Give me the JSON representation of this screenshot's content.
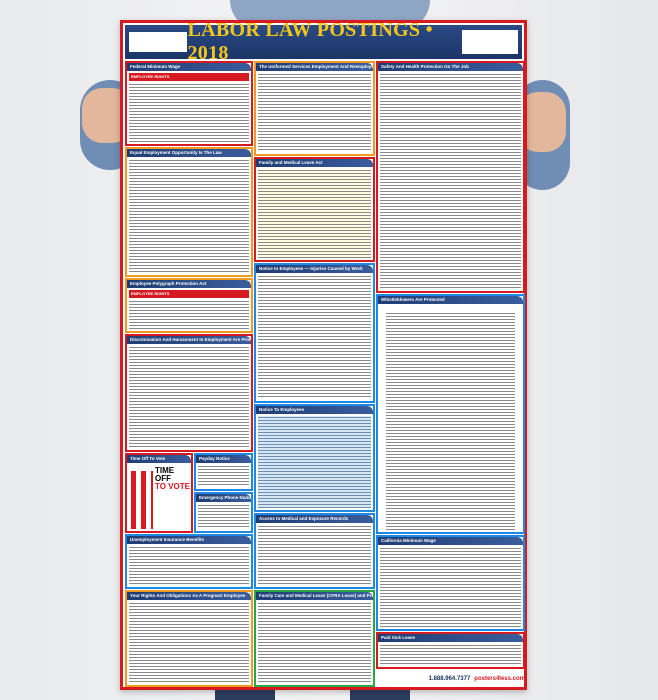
{
  "poster": {
    "title": "LABOR LAW POSTINGS • 2018",
    "footer_phone": "1.888.964.7377",
    "footer_brand": "posters4less.com",
    "colors": {
      "banner": "#1f3d73",
      "title": "#f5c518",
      "border": "#d71920"
    },
    "panels": {
      "fed_min_wage": "Federal Minimum Wage",
      "fed_min_wage_sub": "EMPLOYEE RIGHTS",
      "userra": "The Uniformed Services Employment And Reemployment Rights Act",
      "safety": "Safety And Health Protection On The Job",
      "eeo": "Equal Employment Opportunity Is The Law",
      "fmla": "Family and Medical Leave Act",
      "polygraph": "Employee Polygraph Protection Act",
      "polygraph_sub": "EMPLOYEE RIGHTS",
      "injuries": "Notice to Employees — Injuries Caused by Work",
      "whistle": "Whistleblowers Are Protected",
      "discrimination": "Discrimination And Harassment In Employment Are Prohibited By Law",
      "notice": "Notice To Employees",
      "vote": "Time Off To Vote",
      "vote_big1": "TIME OFF",
      "vote_big2": "TO VOTE",
      "payday": "Payday Notice",
      "emergency": "Emergency Phone Numbers",
      "unemployment": "Unemployment Insurance Benefits",
      "medical_records": "Access to Medical and Exposure Records",
      "ca_min_wage": "California Minimum Wage",
      "pregnant": "Your Rights And Obligations As A Pregnant Employee",
      "cfra": "Family Care and Medical Leave (CFRA Leave) and Pregnancy Disability Leave",
      "sick": "Paid Sick Leave"
    }
  }
}
